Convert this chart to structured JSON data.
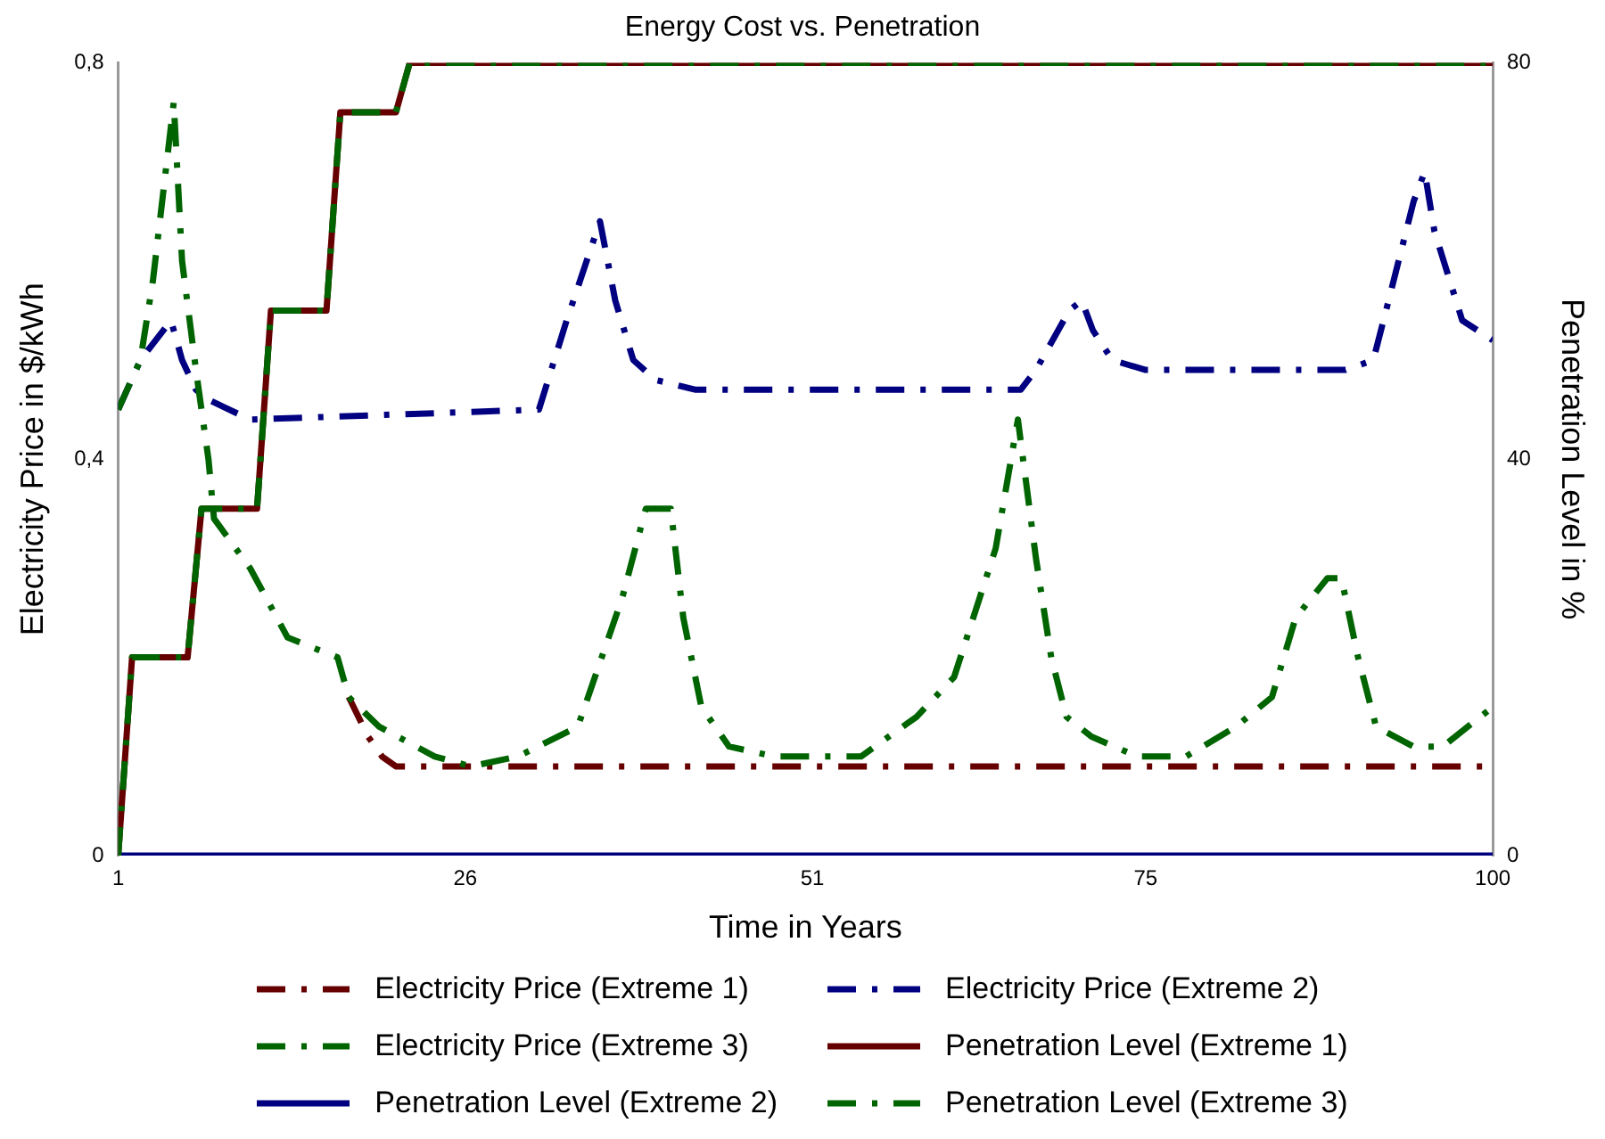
{
  "chart_data": {
    "type": "line",
    "title": "Energy Cost vs. Penetration",
    "xlabel": "Time in Years",
    "ylabel": "Electricity Price in $/kWh",
    "y2label": "Penetration Level in %",
    "xlim": [
      1,
      100
    ],
    "xticks": [
      1,
      26,
      51,
      75,
      100
    ],
    "ylim": [
      0,
      0.8
    ],
    "yticks": [
      {
        "value": 0,
        "label": "0"
      },
      {
        "value": 0.4,
        "label": "0,4"
      },
      {
        "value": 0.8,
        "label": "0,8"
      }
    ],
    "y2lim": [
      0,
      80
    ],
    "y2ticks": [
      0,
      40,
      80
    ],
    "grid": false,
    "legend": "bottom",
    "marker": "none",
    "series": [
      {
        "name": "Electricity Price (Extreme 1)",
        "color": "#660000",
        "line_style": "dashed",
        "x": [
          17.6,
          19.0,
          20.0,
          21.0,
          100
        ],
        "values": [
          0.16,
          0.12,
          0.1,
          0.09,
          0.09
        ]
      },
      {
        "name": "Electricity Price (Extreme 2)",
        "color": "#000080",
        "line_style": "dashed",
        "x": [
          1,
          2.6,
          4.8,
          5.6,
          6.6,
          7.5,
          10.5,
          31.3,
          33.3,
          35.7,
          36.8,
          38.1,
          39.7,
          42.6,
          66.0,
          67.1,
          69.5,
          70.4,
          71.2,
          72.6,
          75.0,
          89.4,
          91.4,
          92.5,
          94.3,
          95.1,
          95.8,
          97.8,
          100
        ],
        "values": [
          0.45,
          0.5,
          0.54,
          0.5,
          0.47,
          0.46,
          0.44,
          0.45,
          0.54,
          0.64,
          0.56,
          0.5,
          0.48,
          0.47,
          0.47,
          0.49,
          0.55,
          0.56,
          0.53,
          0.5,
          0.49,
          0.49,
          0.5,
          0.56,
          0.66,
          0.69,
          0.63,
          0.54,
          0.52
        ]
      },
      {
        "name": "Electricity Price (Extreme 3)",
        "color": "#006400",
        "line_style": "dashed",
        "x": [
          1,
          2.6,
          3.5,
          5.0,
          5.6,
          6.6,
          7.5,
          7.9,
          10.5,
          13.2,
          16.8,
          17.6,
          19.8,
          23.8,
          26.4,
          29.8,
          34.1,
          37.3,
          39.0,
          40.8,
          41.7,
          43.0,
          45.0,
          48.3,
          54.5,
          58.5,
          61.2,
          64.2,
          65.8,
          67.1,
          68.2,
          69.3,
          71.1,
          74.4,
          77.9,
          81.5,
          84.1,
          85.8,
          88.1,
          89.1,
          90.3,
          91.6,
          94.3,
          96.4,
          100
        ],
        "values": [
          0.45,
          0.5,
          0.58,
          0.76,
          0.6,
          0.49,
          0.4,
          0.34,
          0.29,
          0.22,
          0.2,
          0.16,
          0.13,
          0.1,
          0.09,
          0.1,
          0.13,
          0.26,
          0.35,
          0.35,
          0.24,
          0.15,
          0.11,
          0.1,
          0.1,
          0.14,
          0.18,
          0.31,
          0.44,
          0.3,
          0.2,
          0.14,
          0.12,
          0.1,
          0.1,
          0.13,
          0.16,
          0.24,
          0.28,
          0.28,
          0.2,
          0.13,
          0.11,
          0.11,
          0.15
        ]
      },
      {
        "name": "Penetration Level (Extreme 1)",
        "color": "#660000",
        "line_style": "solid",
        "axis": "y2",
        "x": [
          1,
          2,
          6,
          7,
          11,
          12,
          16,
          17,
          21,
          22,
          100
        ],
        "values": [
          0,
          20,
          20,
          35,
          35,
          55,
          55,
          75,
          75,
          80,
          80
        ]
      },
      {
        "name": "Penetration Level (Extreme 2)",
        "color": "#000080",
        "line_style": "solid",
        "axis": "y2",
        "x": [
          1,
          100
        ],
        "values": [
          0,
          0
        ]
      },
      {
        "name": "Penetration Level (Extreme 3)",
        "color": "#006400",
        "line_style": "dashed",
        "axis": "y2",
        "x": [
          1,
          2,
          6,
          7,
          11,
          12,
          16,
          17,
          21,
          22,
          100
        ],
        "values": [
          0,
          20,
          20,
          35,
          35,
          55,
          55,
          75,
          75,
          80,
          80
        ]
      }
    ]
  }
}
